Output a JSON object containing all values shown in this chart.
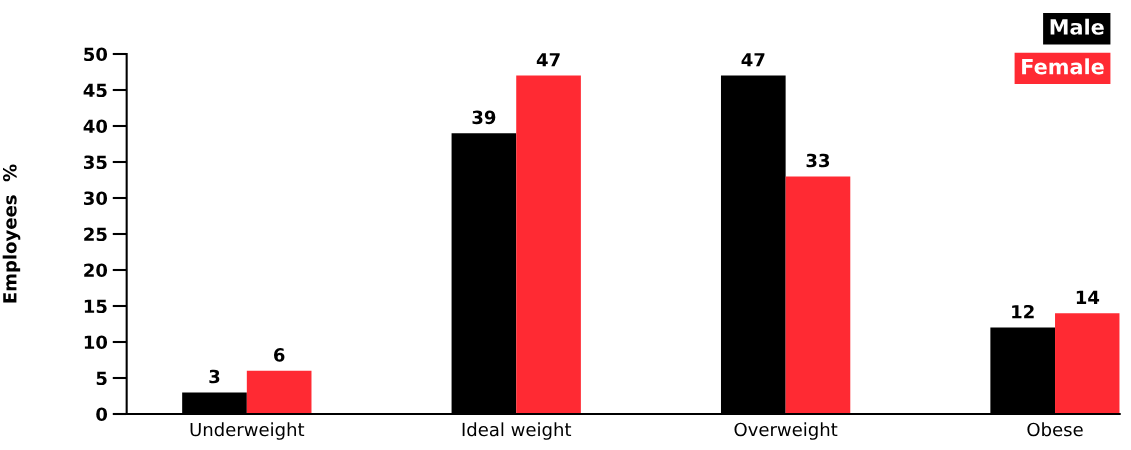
{
  "chart_data": {
    "type": "bar",
    "ylabel": "Employees  %",
    "categories": [
      "Underweight",
      "Ideal weight",
      "Overweight",
      "Obese"
    ],
    "series": [
      {
        "name": "Male",
        "color": "#000000",
        "values": [
          3,
          39,
          47,
          12
        ]
      },
      {
        "name": "Female",
        "color": "#ff2a33",
        "values": [
          6,
          47,
          33,
          14
        ]
      }
    ],
    "ylim": [
      0,
      50
    ],
    "yticks": [
      0,
      5,
      10,
      15,
      20,
      25,
      30,
      35,
      40,
      45,
      50
    ],
    "grid": false,
    "legend": "top right",
    "data_labels": true
  }
}
